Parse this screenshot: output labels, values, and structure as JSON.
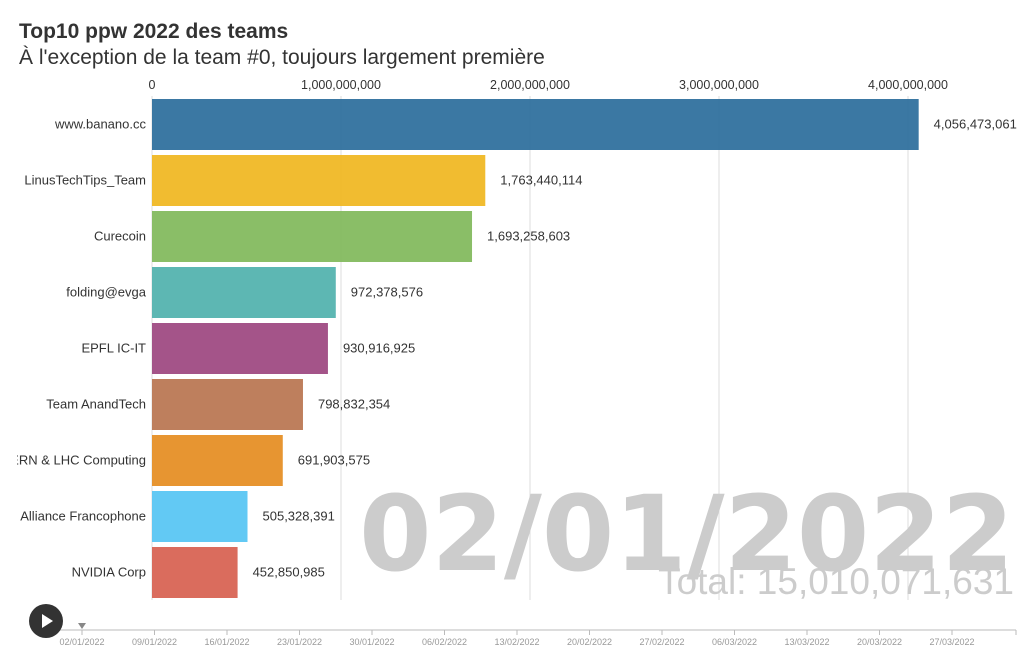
{
  "chart_data": {
    "type": "bar",
    "title": "Top10 ppw 2022 des teams",
    "subtitle": "À l'exception de la team #0, toujours largement première",
    "categories": [
      "www.banano.cc",
      "LinusTechTips_Team",
      "Curecoin",
      "folding@evga",
      "EPFL IC-IT",
      "Team AnandTech",
      "CERN & LHC Computing",
      "Alliance Francophone",
      "NVIDIA Corp"
    ],
    "values": [
      4056473061,
      1763440114,
      1693258603,
      972378576,
      930916925,
      798832354,
      691903575,
      505328391,
      452850985
    ],
    "value_labels": [
      "4,056,473,061",
      "1,763,440,114",
      "1,693,258,603",
      "972,378,576",
      "930,916,925",
      "798,832,354",
      "691,903,575",
      "505,328,391",
      "452,850,985"
    ],
    "colors": [
      "#2a6d9b",
      "#f0b61e",
      "#80b85a",
      "#4fb1ad",
      "#9c457f",
      "#b9744f",
      "#e58c1f",
      "#55c4f3",
      "#d7604f"
    ],
    "xlim": [
      0,
      4500000000
    ],
    "x_ticks": [
      0,
      1000000000,
      2000000000,
      3000000000,
      4000000000
    ],
    "x_tick_labels": [
      "0",
      "1,000,000,000",
      "2,000,000,000",
      "3,000,000,000",
      "4,000,000,000"
    ],
    "grid": true,
    "current_date": "02/01/2022",
    "total_label": "Total: 15,010,071,631",
    "timeline_labels": [
      "02/01/2022",
      "09/01/2022",
      "16/01/2022",
      "23/01/2022",
      "30/01/2022",
      "06/02/2022",
      "13/02/2022",
      "20/02/2022",
      "27/02/2022",
      "06/03/2022",
      "13/03/2022",
      "20/03/2022",
      "27/03/2022"
    ],
    "timeline_position": 0
  },
  "controls": {
    "play_icon": "play-icon"
  }
}
